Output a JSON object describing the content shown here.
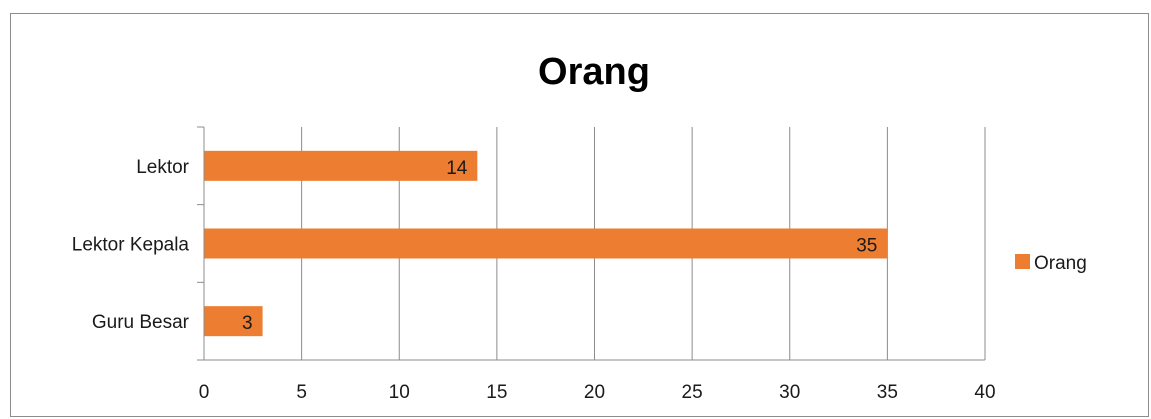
{
  "chart_data": {
    "type": "bar",
    "orientation": "horizontal",
    "title": "Orang",
    "xlabel": "",
    "ylabel": "",
    "categories": [
      "Lektor",
      "Lektor Kepala",
      "Guru Besar"
    ],
    "series": [
      {
        "name": "Orang",
        "values": [
          14,
          35,
          3
        ],
        "color": "#ED7D31"
      }
    ],
    "xlim": [
      0,
      40
    ],
    "xticks": [
      0,
      5,
      10,
      15,
      20,
      25,
      30,
      35,
      40
    ],
    "grid": true,
    "legend_position": "right",
    "data_labels": [
      "14",
      "35",
      "3"
    ]
  }
}
